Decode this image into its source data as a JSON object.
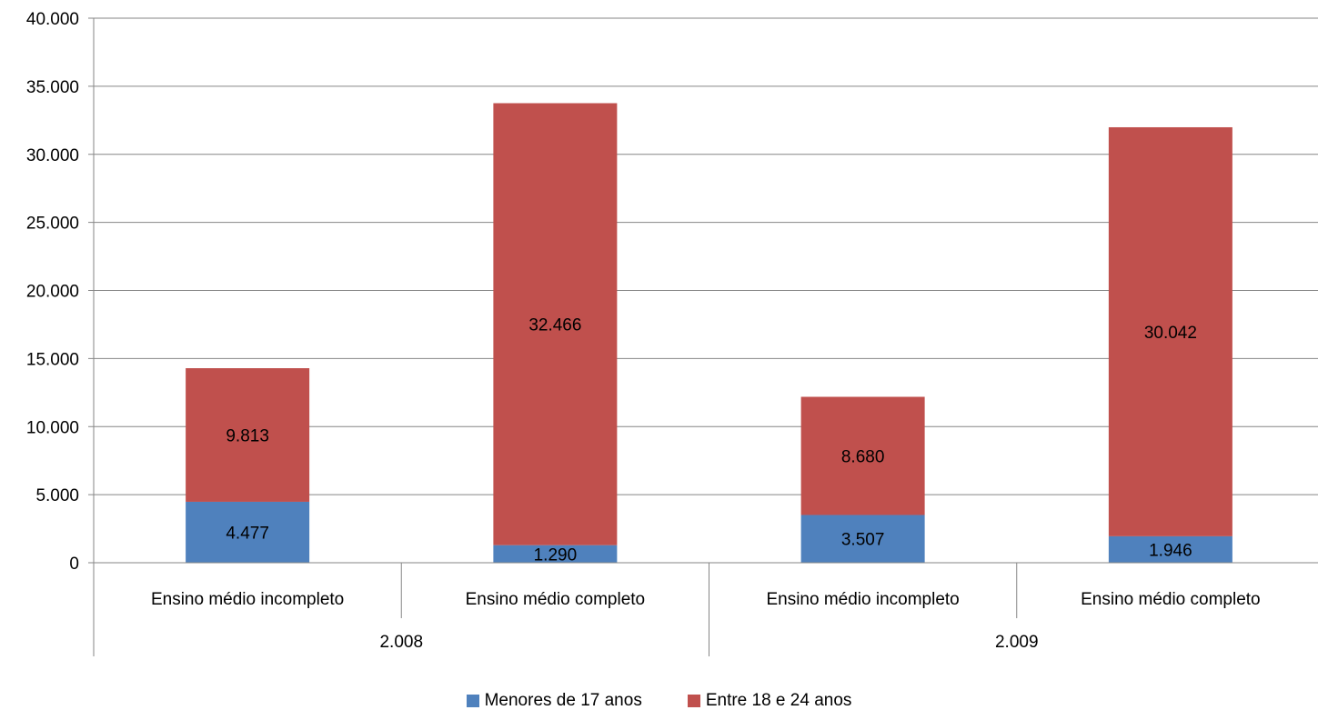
{
  "chart_data": {
    "type": "bar",
    "stacked": true,
    "title": "",
    "xlabel": "",
    "ylabel": "",
    "ylim": [
      0,
      40000
    ],
    "yticks": [
      0,
      5000,
      10000,
      15000,
      20000,
      25000,
      30000,
      35000,
      40000
    ],
    "ytick_labels": [
      "0",
      "5.000",
      "10.000",
      "15.000",
      "20.000",
      "25.000",
      "30.000",
      "35.000",
      "40.000"
    ],
    "categories": [
      "Ensino médio incompleto",
      "Ensino médio completo",
      "Ensino médio incompleto",
      "Ensino médio completo"
    ],
    "groups": [
      {
        "label": "2.008",
        "span": [
          0,
          1
        ]
      },
      {
        "label": "2.009",
        "span": [
          2,
          3
        ]
      }
    ],
    "series": [
      {
        "name": "Menores de 17 anos",
        "color": "#4F81BD",
        "values": [
          4477,
          1290,
          3507,
          1946
        ],
        "labels": [
          "4.477",
          "1.290",
          "3.507",
          "1.946"
        ]
      },
      {
        "name": "Entre 18 e 24 anos",
        "color": "#C0504D",
        "values": [
          9813,
          32466,
          8680,
          30042
        ],
        "labels": [
          "9.813",
          "32.466",
          "8.680",
          "30.042"
        ]
      }
    ],
    "grid": true,
    "legend": "bottom"
  }
}
